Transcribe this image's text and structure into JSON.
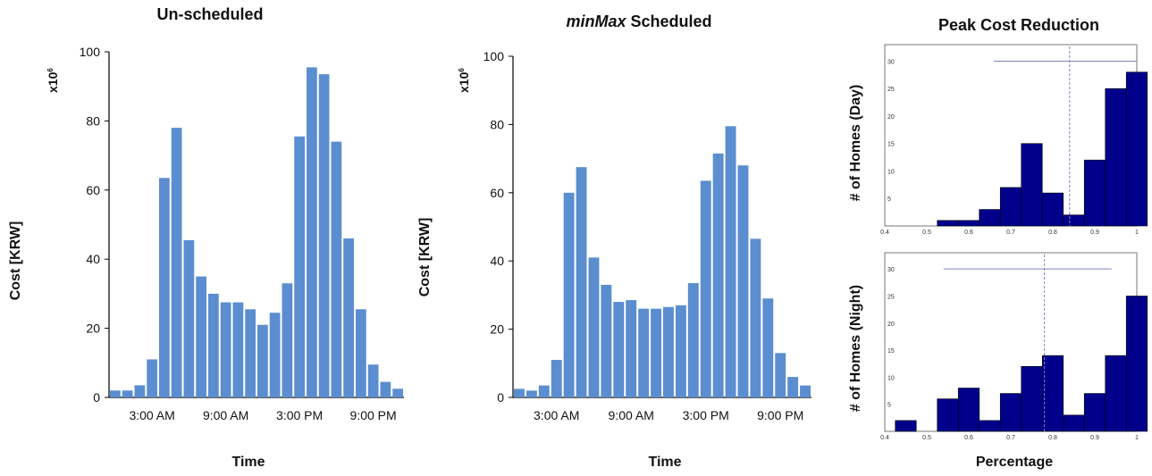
{
  "colors": {
    "bar_blue": "#5b8ed0",
    "hist_navy": "#00008b",
    "guide": "#7d84c4"
  },
  "chart_data": [
    {
      "type": "bar",
      "title": "Un-scheduled",
      "xlabel": "Time",
      "ylabel": "Cost [KRW]",
      "multiplier": "x10",
      "multiplier_exp": "6",
      "ylim": [
        0,
        100
      ],
      "yticks": [
        "0",
        "20",
        "40",
        "60",
        "80",
        "100"
      ],
      "xtick_labels": [
        "3:00 AM",
        "9:00 AM",
        "3:00 PM",
        "9:00 PM"
      ],
      "xtick_hours": [
        3,
        9,
        15,
        21
      ],
      "hours": [
        0,
        1,
        2,
        3,
        4,
        5,
        6,
        7,
        8,
        9,
        10,
        11,
        12,
        13,
        14,
        15,
        16,
        17,
        18,
        19,
        20,
        21,
        22,
        23
      ],
      "values": [
        2,
        2,
        3.5,
        11,
        63.5,
        78,
        45.5,
        35,
        30,
        27.5,
        27.5,
        25.5,
        21,
        24.5,
        33,
        75.5,
        95.5,
        93.5,
        74,
        46,
        25.5,
        9.5,
        4.5,
        2.5
      ]
    },
    {
      "type": "bar",
      "title_italic": "minMax",
      "title": "Scheduled",
      "xlabel": "Time",
      "ylabel": "Cost [KRW]",
      "multiplier": "x10",
      "multiplier_exp": "6",
      "ylim": [
        0,
        100
      ],
      "yticks": [
        "0",
        "20",
        "40",
        "60",
        "80",
        "100"
      ],
      "xtick_labels": [
        "3:00 AM",
        "9:00 AM",
        "3:00 PM",
        "9:00 PM"
      ],
      "xtick_hours": [
        3,
        9,
        15,
        21
      ],
      "hours": [
        0,
        1,
        2,
        3,
        4,
        5,
        6,
        7,
        8,
        9,
        10,
        11,
        12,
        13,
        14,
        15,
        16,
        17,
        18,
        19,
        20,
        21,
        22,
        23
      ],
      "values": [
        2.5,
        2,
        3.5,
        11,
        60,
        67.5,
        41,
        33,
        28,
        28.5,
        26,
        26,
        26.5,
        27,
        33.5,
        63.5,
        71.5,
        79.5,
        68,
        46.5,
        29,
        13,
        6,
        3.5
      ]
    },
    {
      "type": "bar",
      "title": "Peak Cost Reduction",
      "ylabel": "# of Homes (Day)",
      "xlim": [
        0.4,
        1
      ],
      "ylim": [
        0,
        33
      ],
      "xticks": [
        "0.4",
        "0.5",
        "0.6",
        "0.7",
        "0.8",
        "0.9",
        "1"
      ],
      "yticks": [
        "5",
        "10",
        "15",
        "20",
        "25",
        "30"
      ],
      "bin_width": 0.05,
      "bin_starts": [
        0.525,
        0.575,
        0.625,
        0.675,
        0.725,
        0.775,
        0.825,
        0.875,
        0.925,
        0.975
      ],
      "values": [
        1,
        1,
        3,
        7,
        15,
        6,
        2,
        12,
        25,
        28
      ],
      "mean": 0.84,
      "range": [
        0.66,
        1.0
      ],
      "range_level": 30
    },
    {
      "type": "bar",
      "ylabel": "# of Homes (Night)",
      "xlabel": "Percentage",
      "xlim": [
        0.4,
        1
      ],
      "ylim": [
        0,
        33
      ],
      "xticks": [
        "0.4",
        "0.5",
        "0.6",
        "0.7",
        "0.8",
        "0.9",
        "1"
      ],
      "yticks": [
        "5",
        "10",
        "15",
        "20",
        "25",
        "30"
      ],
      "bin_width": 0.05,
      "bin_starts": [
        0.425,
        0.475,
        0.525,
        0.575,
        0.625,
        0.675,
        0.725,
        0.775,
        0.825,
        0.875,
        0.925,
        0.975
      ],
      "values": [
        2,
        0,
        6,
        8,
        2,
        7,
        12,
        14,
        3,
        7,
        14,
        25
      ],
      "mean": 0.78,
      "range": [
        0.54,
        0.94
      ],
      "range_level": 30
    }
  ]
}
